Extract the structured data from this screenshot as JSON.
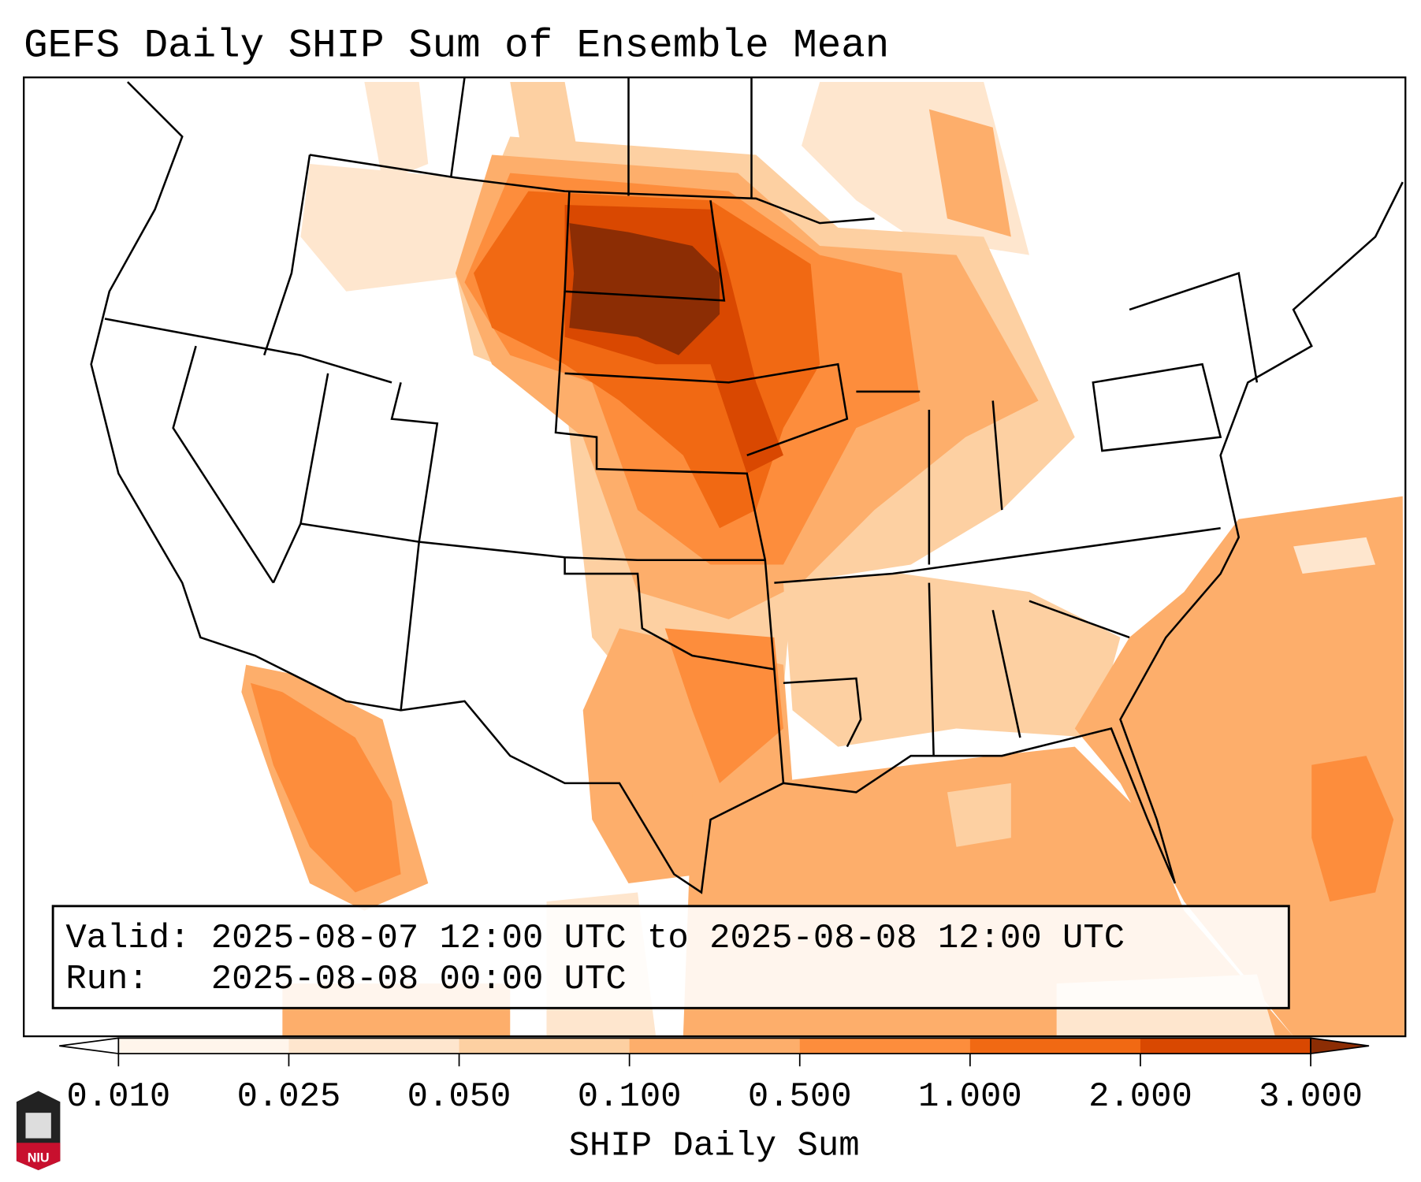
{
  "title": "GEFS Daily SHIP Sum of Ensemble Mean",
  "info_box": {
    "valid_line": "Valid: 2025-08-07 12:00 UTC to 2025-08-08 12:00 UTC",
    "run_line": "Run:   2025-08-08 00:00 UTC"
  },
  "colorbar": {
    "label": "SHIP Daily Sum",
    "ticks": [
      "0.010",
      "0.025",
      "0.050",
      "0.100",
      "0.500",
      "1.000",
      "2.000",
      "3.000"
    ],
    "colors": [
      "#fff5eb",
      "#fee6ce",
      "#fdd0a2",
      "#fdae6b",
      "#fd8d3c",
      "#f16913",
      "#d94801",
      "#8c2d04"
    ],
    "under_color": "#ffffff",
    "over_color": "#8c2d04"
  },
  "logo": {
    "text": "NIU"
  }
}
